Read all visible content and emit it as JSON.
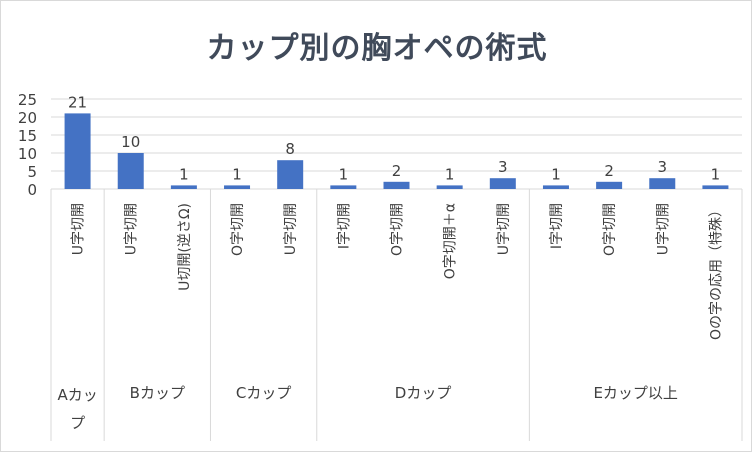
{
  "chart_data": {
    "type": "bar",
    "title": "カップ別の胸オペの術式",
    "ylim": [
      0,
      25
    ],
    "yticks": [
      0,
      5,
      10,
      15,
      20,
      25
    ],
    "grid": true,
    "legend": "none",
    "bar_color": "#4472c4",
    "data_labels": true,
    "groups": [
      {
        "name": "Aカップ",
        "categories": [
          "U字切開"
        ],
        "values": [
          21
        ]
      },
      {
        "name": "Bカップ",
        "categories": [
          "U字切開",
          "U切開(逆さΩ)"
        ],
        "values": [
          10,
          1
        ]
      },
      {
        "name": "Cカップ",
        "categories": [
          "O字切開",
          "U字切開"
        ],
        "values": [
          1,
          8
        ]
      },
      {
        "name": "Dカップ",
        "categories": [
          "I字切開",
          "O字切開",
          "O字切開＋α",
          "U字切開"
        ],
        "values": [
          1,
          2,
          1,
          3
        ]
      },
      {
        "name": "Eカップ以上",
        "categories": [
          "I字切開",
          "O字切開",
          "U字切開",
          "Oの字の応用（特殊）"
        ],
        "values": [
          1,
          2,
          3,
          1
        ]
      }
    ]
  }
}
